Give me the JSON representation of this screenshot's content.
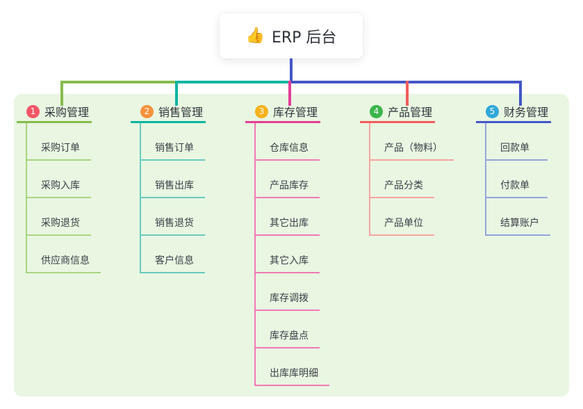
{
  "root": {
    "icon": "👍",
    "title": "ERP 后台"
  },
  "colors": {
    "root_line": "#4456c7",
    "panel_bg": "#e9f6e2",
    "root_card_bg": "#ffffff"
  },
  "branches": [
    {
      "num": "1",
      "label": "采购管理",
      "badge_color": "#f25666",
      "line_color": "#86bc4c",
      "child_line_color": "#a9d57e",
      "children": [
        "采购订单",
        "采购入库",
        "采购退货",
        "供应商信息"
      ]
    },
    {
      "num": "2",
      "label": "销售管理",
      "badge_color": "#f6913e",
      "line_color": "#0ab5a2",
      "child_line_color": "#66ccbd",
      "children": [
        "销售订单",
        "销售出库",
        "销售退货",
        "客户信息"
      ]
    },
    {
      "num": "3",
      "label": "库存管理",
      "badge_color": "#f6b21b",
      "line_color": "#e23e96",
      "child_line_color": "#f07ab3",
      "children": [
        "仓库信息",
        "产品库存",
        "其它出库",
        "其它入库",
        "库存调拨",
        "库存盘点",
        "出库库明细"
      ]
    },
    {
      "num": "4",
      "label": "产品管理",
      "badge_color": "#3bb54a",
      "line_color": "#f15c5c",
      "child_line_color": "#f8a3a0",
      "children": [
        "产品（物料）",
        "产品分类",
        "产品单位"
      ]
    },
    {
      "num": "5",
      "label": "财务管理",
      "badge_color": "#2fa8d8",
      "line_color": "#4456c7",
      "child_line_color": "#93a5dc",
      "children": [
        "回款单",
        "付款单",
        "结算账户"
      ]
    }
  ]
}
